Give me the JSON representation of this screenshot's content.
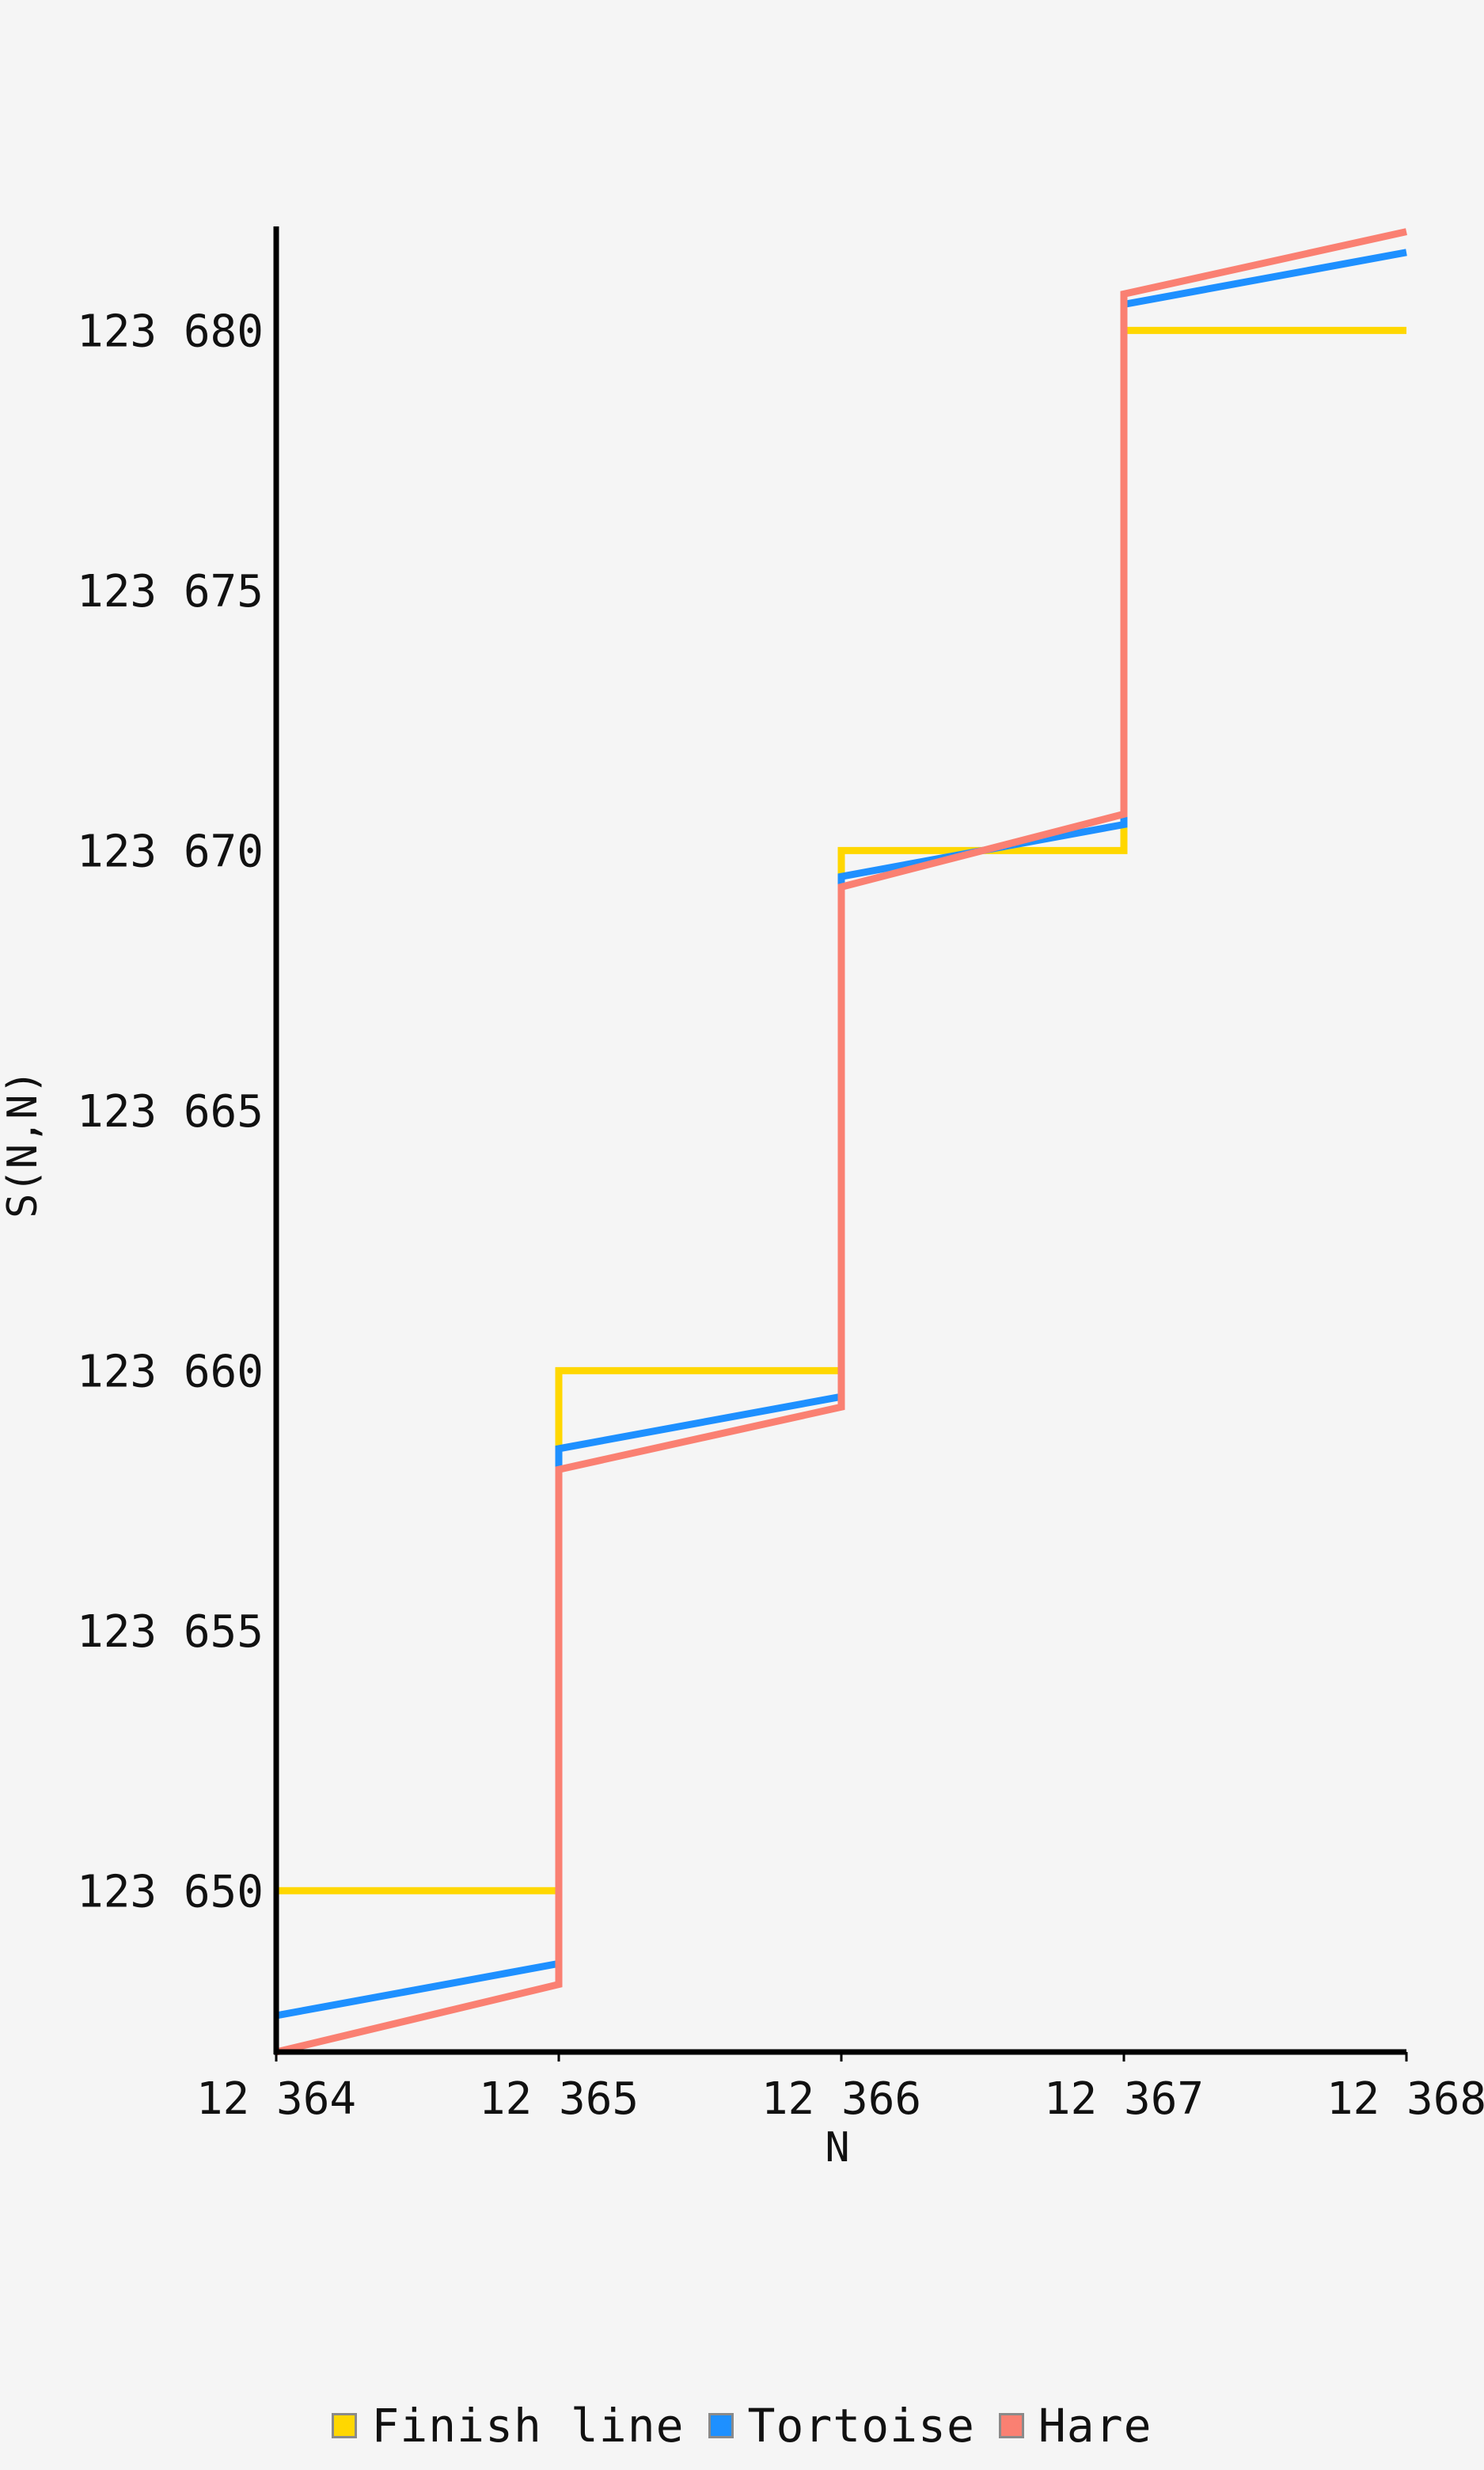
{
  "chart_data": {
    "type": "line",
    "title": "",
    "xlabel": "N",
    "ylabel": "S(N,N)",
    "xlim": [
      12364,
      12368
    ],
    "ylim": [
      123646.9,
      123682
    ],
    "x_ticks": [
      12364,
      12365,
      12366,
      12367,
      12368
    ],
    "x_tick_labels": [
      "12 364",
      "12 365",
      "12 366",
      "12 367",
      "12 368"
    ],
    "y_ticks": [
      123650,
      123655,
      123660,
      123665,
      123670,
      123675,
      123680
    ],
    "y_tick_labels": [
      "123 650",
      "123 655",
      "123 660",
      "123 665",
      "123 670",
      "123 675",
      "123 680"
    ],
    "grid": false,
    "legend_position": "bottom-center",
    "series": [
      {
        "name": "Finish line",
        "color": "#ffd700",
        "points": [
          [
            12364,
            123650
          ],
          [
            12365,
            123650
          ],
          [
            12365,
            123660
          ],
          [
            12366,
            123660
          ],
          [
            12366,
            123670
          ],
          [
            12367,
            123670
          ],
          [
            12367,
            123680
          ],
          [
            12368,
            123680
          ]
        ]
      },
      {
        "name": "Tortoise",
        "color": "#1e90ff",
        "points": [
          [
            12364,
            123647.6
          ],
          [
            12365,
            123648.6
          ],
          [
            12365,
            123658.5
          ],
          [
            12366,
            123659.5
          ],
          [
            12366,
            123669.5
          ],
          [
            12367,
            123670.5
          ],
          [
            12367,
            123680.5
          ],
          [
            12368,
            123681.5
          ]
        ]
      },
      {
        "name": "Hare",
        "color": "#fa8072",
        "points": [
          [
            12364,
            123646.9
          ],
          [
            12365,
            123648.2
          ],
          [
            12365,
            123658.1
          ],
          [
            12366,
            123659.3
          ],
          [
            12366,
            123669.3
          ],
          [
            12367,
            123670.7
          ],
          [
            12367,
            123680.7
          ],
          [
            12368,
            123681.9
          ]
        ]
      }
    ]
  }
}
